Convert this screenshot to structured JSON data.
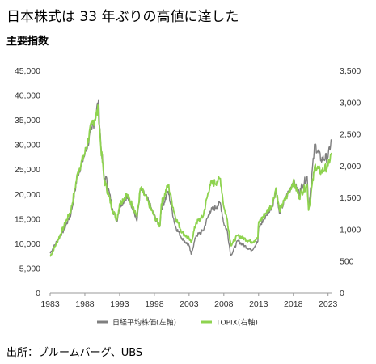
{
  "header": {
    "title": "日本株式は 33 年ぶりの高値に達した",
    "subtitle": "主要指数"
  },
  "footer": {
    "source": "出所：ブルームバーグ、UBS"
  },
  "chart_data": {
    "type": "line",
    "title": "日本株式は 33 年ぶりの高値に達した",
    "subtitle": "主要指数",
    "grid": false,
    "legend_position": "bottom",
    "x_ticks": [
      "1983",
      "1988",
      "1993",
      "1998",
      "2003",
      "2008",
      "2013",
      "2018",
      "2023"
    ],
    "xlim": [
      1983,
      2023.5
    ],
    "left_axis": {
      "ylim": [
        0,
        45000
      ],
      "ticks": [
        "0",
        "5,000",
        "10,000",
        "15,000",
        "20,000",
        "25,000",
        "30,000",
        "35,000",
        "40,000",
        "45,000"
      ]
    },
    "right_axis": {
      "ylim": [
        0,
        3500
      ],
      "ticks": [
        "0",
        "500",
        "1,000",
        "1,500",
        "2,000",
        "2,500",
        "3,000",
        "3,500"
      ]
    },
    "series": [
      {
        "name": "日経平均株価(左軸)",
        "axis": "left",
        "color": "#7f7f7f",
        "x": [
          1983,
          1984,
          1985,
          1986,
          1987,
          1988,
          1989,
          1989.5,
          1989.95,
          1990.3,
          1990.8,
          1991,
          1992,
          1992.6,
          1993,
          1994,
          1995,
          1995.5,
          1996,
          1997,
          1998,
          1998.8,
          1999,
          2000,
          2000.5,
          2001,
          2002,
          2003,
          2003.3,
          2004,
          2005,
          2006,
          2007,
          2007.5,
          2008,
          2008.5,
          2009,
          2010,
          2011,
          2012,
          2012.9,
          2013,
          2014,
          2015,
          2015.5,
          2016,
          2017,
          2018,
          2018.9,
          2019,
          2020,
          2020.2,
          2021,
          2021.1,
          2022,
          2023,
          2023.5
        ],
        "y": [
          8000,
          10500,
          12800,
          16000,
          24000,
          28000,
          33000,
          35500,
          38900,
          30000,
          23000,
          23500,
          17000,
          14500,
          17400,
          19500,
          17000,
          14500,
          21000,
          19000,
          15500,
          13500,
          17000,
          20500,
          17000,
          13500,
          11000,
          9500,
          7800,
          11500,
          12500,
          16500,
          17500,
          18200,
          14000,
          12500,
          7500,
          10500,
          9500,
          8600,
          10400,
          13000,
          15500,
          17700,
          20800,
          16000,
          19500,
          22500,
          20000,
          21000,
          23500,
          17000,
          28500,
          30000,
          27000,
          27500,
          31000
        ]
      },
      {
        "name": "TOPIX(右軸)",
        "axis": "right",
        "color": "#8ed34f",
        "x": [
          1983,
          1984,
          1985,
          1986,
          1987,
          1988,
          1989,
          1989.95,
          1990.3,
          1990.8,
          1991,
          1992,
          1992.6,
          1993,
          1994,
          1995,
          1995.5,
          1996,
          1997,
          1998,
          1998.8,
          1999,
          2000,
          2000.5,
          2001,
          2002,
          2003,
          2003.3,
          2004,
          2005,
          2006,
          2007,
          2007.5,
          2008,
          2008.5,
          2009,
          2010,
          2011,
          2012,
          2012.9,
          2013,
          2014,
          2015,
          2015.5,
          2016,
          2017,
          2018,
          2018.9,
          2019,
          2020,
          2020.2,
          2021,
          2021.1,
          2022,
          2023,
          2023.5
        ],
        "y": [
          570,
          800,
          1050,
          1300,
          1900,
          2200,
          2650,
          2880,
          2300,
          1750,
          1700,
          1300,
          1150,
          1400,
          1550,
          1350,
          1200,
          1650,
          1450,
          1200,
          1050,
          1400,
          1700,
          1450,
          1200,
          950,
          850,
          790,
          1100,
          1200,
          1700,
          1750,
          1800,
          1350,
          1150,
          750,
          900,
          850,
          800,
          860,
          1100,
          1250,
          1400,
          1650,
          1300,
          1500,
          1750,
          1500,
          1550,
          1700,
          1300,
          1900,
          2000,
          1900,
          2000,
          2200
        ]
      }
    ]
  }
}
